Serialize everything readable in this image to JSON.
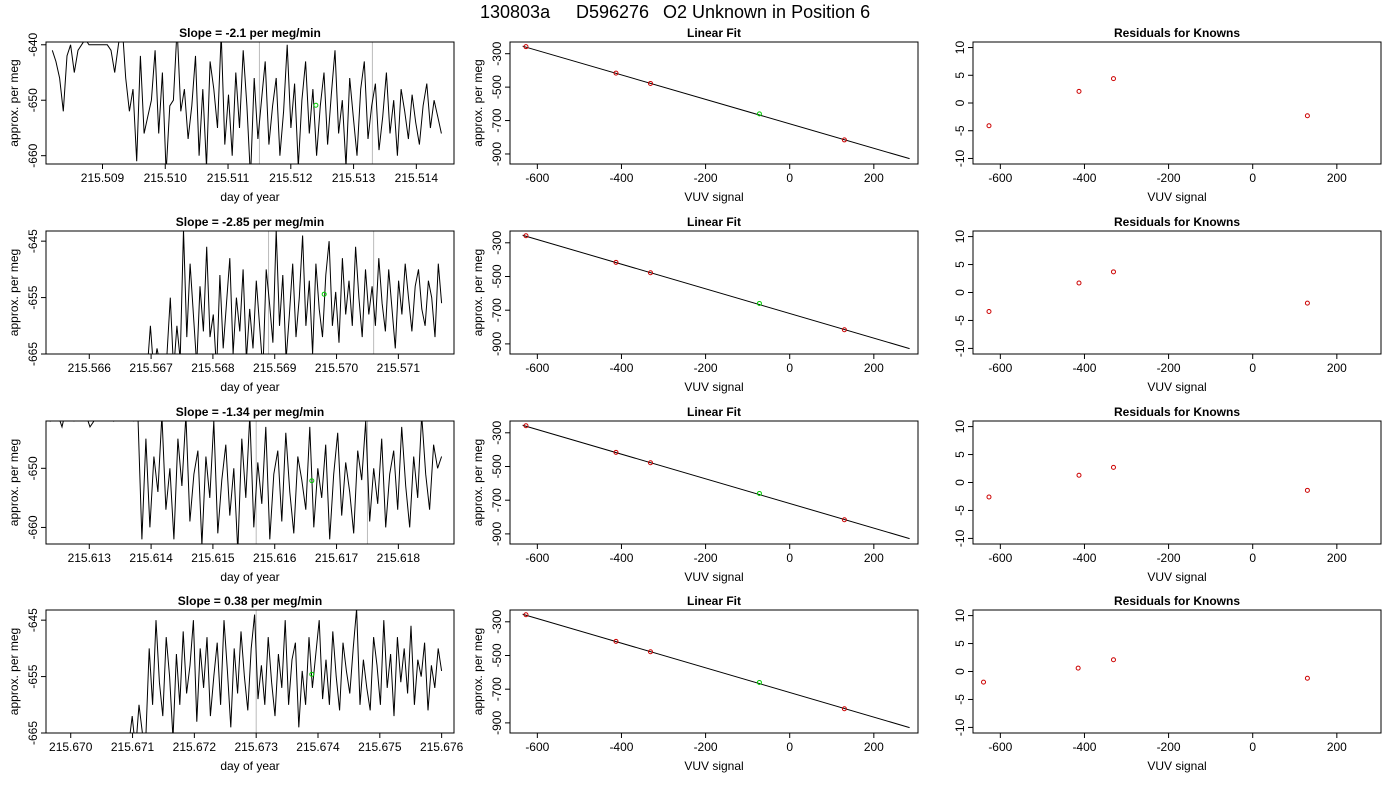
{
  "figure": {
    "title_run": "130803a",
    "title_sample": "D596276",
    "title_desc": "O2 Unknown in Position  6"
  },
  "colors": {
    "known_point": "#cc0000",
    "unknown_point": "#00cc00",
    "line": "#000000",
    "ref_line": "#bbbbbb"
  },
  "chart_data": [
    {
      "type": "line",
      "row": 1,
      "title": "Slope =  -2.1  per meg/min",
      "xlabel": "day of year",
      "ylabel": "approx. per meg",
      "xlim": [
        215.5081,
        215.5146
      ],
      "ylim": [
        -661.5,
        -639.5
      ],
      "xticks": [
        "215.509",
        "215.510",
        "215.511",
        "215.512",
        "215.513",
        "215.514"
      ],
      "yticks": [
        "-640",
        "-650",
        "-660"
      ],
      "ref_lines_x": [
        215.5115,
        215.5133
      ],
      "trace_start": 215.5082,
      "trace_end": 215.5144,
      "trace_y": [
        -641,
        -643,
        -646,
        -652,
        -642,
        -640,
        -645,
        -641,
        -640,
        -639,
        -640,
        -640,
        -640,
        -640,
        -640,
        -640,
        -641,
        -645,
        -640,
        -636,
        -646,
        -652,
        -648,
        -661,
        -642,
        -656,
        -653,
        -650,
        -641,
        -656,
        -645,
        -663,
        -651,
        -650,
        -637,
        -652,
        -648,
        -657,
        -651,
        -642,
        -660,
        -648,
        -662,
        -643,
        -648,
        -655,
        -638,
        -658,
        -649,
        -660,
        -645,
        -655,
        -641,
        -651,
        -664,
        -646,
        -657,
        -650,
        -643,
        -658,
        -651,
        -646,
        -660,
        -652,
        -640,
        -655,
        -647,
        -662,
        -650,
        -643,
        -656,
        -648,
        -660,
        -651,
        -645,
        -658,
        -649,
        -641,
        -656,
        -650,
        -662,
        -646,
        -653,
        -660,
        -648,
        -643,
        -657,
        -651,
        -647,
        -659,
        -653,
        -645,
        -656,
        -650,
        -660,
        -648,
        -652,
        -657,
        -649,
        -654,
        -658,
        -651,
        -647,
        -655,
        -650,
        -653,
        -656
      ],
      "unknown_point": {
        "x": 215.5124,
        "y": -650.9
      }
    },
    {
      "type": "scatter",
      "row": 1,
      "title": "Linear Fit",
      "xlabel": "VUV signal",
      "ylabel": "approx. per meg",
      "xlim": [
        -665,
        305
      ],
      "ylim": [
        -960,
        -230
      ],
      "xticks": [
        -600,
        -400,
        -200,
        0,
        200
      ],
      "yticks": [
        -300,
        -500,
        -700,
        -900
      ],
      "line": {
        "x": [
          -635,
          285
        ],
        "y": [
          -255,
          -928
        ]
      },
      "knowns": [
        {
          "x": -627,
          "y": -258
        },
        {
          "x": -413,
          "y": -416
        },
        {
          "x": -331,
          "y": -478
        },
        {
          "x": 130,
          "y": -816
        }
      ],
      "unknown": {
        "x": -72,
        "y": -660
      }
    },
    {
      "type": "scatter",
      "row": 1,
      "title": "Residuals for Knowns",
      "xlabel": "VUV signal",
      "ylabel": "",
      "xlim": [
        -665,
        305
      ],
      "ylim": [
        -11,
        11
      ],
      "xticks": [
        -600,
        -400,
        -200,
        0,
        200
      ],
      "yticks": [
        10,
        5,
        0,
        -5,
        -10
      ],
      "points": [
        {
          "x": -627,
          "y": -4.1
        },
        {
          "x": -413,
          "y": 2.1
        },
        {
          "x": -331,
          "y": 4.4
        },
        {
          "x": 130,
          "y": -2.3
        }
      ]
    },
    {
      "type": "line",
      "row": 2,
      "title": "Slope =  -2.85  per meg/min",
      "xlabel": "day of year",
      "ylabel": "approx. per meg",
      "xlim": [
        215.5653,
        215.5719
      ],
      "ylim": [
        -665,
        -643.2
      ],
      "xticks": [
        "215.566",
        "215.567",
        "215.568",
        "215.569",
        "215.570",
        "215.571"
      ],
      "yticks": [
        "-645",
        "-655",
        "-665"
      ],
      "ref_lines_x": [
        215.5689,
        215.5706
      ],
      "trace_start": 215.5664,
      "trace_end": 215.5717,
      "trace_y": [
        -666,
        -666,
        -667,
        -666,
        -667,
        -668,
        -666,
        -667,
        -666,
        -667,
        -668,
        -660,
        -668,
        -664,
        -667,
        -670,
        -665,
        -655,
        -668,
        -660,
        -666,
        -643,
        -662,
        -649,
        -658,
        -667,
        -653,
        -661,
        -646,
        -662,
        -658,
        -668,
        -651,
        -664,
        -656,
        -648,
        -665,
        -655,
        -661,
        -650,
        -666,
        -657,
        -664,
        -652,
        -660,
        -668,
        -650,
        -656,
        -663,
        -643,
        -660,
        -651,
        -666,
        -658,
        -649,
        -662,
        -655,
        -644,
        -660,
        -652,
        -665,
        -649,
        -657,
        -662,
        -651,
        -645,
        -660,
        -654,
        -663,
        -648,
        -658,
        -652,
        -660,
        -646,
        -655,
        -662,
        -650,
        -658,
        -653,
        -660,
        -648,
        -656,
        -661,
        -650,
        -657,
        -664,
        -652,
        -658,
        -649,
        -655,
        -661,
        -653,
        -650,
        -657,
        -660,
        -652,
        -655,
        -662,
        -649,
        -656
      ],
      "unknown_point": {
        "x": 215.5698,
        "y": -654.4
      }
    },
    {
      "type": "scatter",
      "row": 2,
      "title": "Linear Fit",
      "xlabel": "VUV signal",
      "ylabel": "approx. per meg",
      "xlim": [
        -665,
        305
      ],
      "ylim": [
        -960,
        -230
      ],
      "xticks": [
        -600,
        -400,
        -200,
        0,
        200
      ],
      "yticks": [
        -300,
        -500,
        -700,
        -900
      ],
      "line": {
        "x": [
          -635,
          285
        ],
        "y": [
          -255,
          -928
        ]
      },
      "knowns": [
        {
          "x": -627,
          "y": -258
        },
        {
          "x": -413,
          "y": -416
        },
        {
          "x": -331,
          "y": -478
        },
        {
          "x": 130,
          "y": -816
        }
      ],
      "unknown": {
        "x": -72,
        "y": -660
      }
    },
    {
      "type": "scatter",
      "row": 2,
      "title": "Residuals for Knowns",
      "xlabel": "VUV signal",
      "ylabel": "",
      "xlim": [
        -665,
        305
      ],
      "ylim": [
        -11,
        11
      ],
      "xticks": [
        -600,
        -400,
        -200,
        0,
        200
      ],
      "yticks": [
        10,
        5,
        0,
        -5,
        -10
      ],
      "points": [
        {
          "x": -627,
          "y": -3.4
        },
        {
          "x": -413,
          "y": 1.7
        },
        {
          "x": -331,
          "y": 3.7
        },
        {
          "x": 130,
          "y": -1.9
        }
      ]
    },
    {
      "type": "line",
      "row": 3,
      "title": "Slope =  -1.34  per meg/min",
      "xlabel": "day of year",
      "ylabel": "approx. per meg",
      "xlim": [
        215.6123,
        215.6189
      ],
      "ylim": [
        -662.8,
        -642
      ],
      "xticks": [
        "215.613",
        "215.614",
        "215.615",
        "215.616",
        "215.617",
        "215.618"
      ],
      "yticks": [
        "-650",
        "-660"
      ],
      "ref_lines_x": [
        215.6157,
        215.6175
      ],
      "trace_start": 215.6123,
      "trace_end": 215.6187,
      "trace_y": [
        -641,
        -642,
        -640,
        -641,
        -643,
        -640,
        -641,
        -642,
        -641,
        -640,
        -641,
        -643,
        -642,
        -641,
        -640,
        -641,
        -640,
        -642,
        -641,
        -640,
        -639,
        -641,
        -642,
        -641,
        -662,
        -645,
        -660,
        -648,
        -654,
        -641,
        -657,
        -650,
        -662,
        -645,
        -653,
        -641,
        -659,
        -651,
        -647,
        -663,
        -648,
        -655,
        -642,
        -661,
        -652,
        -646,
        -658,
        -650,
        -664,
        -645,
        -655,
        -641,
        -660,
        -649,
        -656,
        -643,
        -662,
        -651,
        -647,
        -659,
        -644,
        -654,
        -661,
        -648,
        -652,
        -657,
        -643,
        -660,
        -650,
        -655,
        -646,
        -662,
        -651,
        -644,
        -658,
        -649,
        -654,
        -661,
        -647,
        -652,
        -642,
        -659,
        -650,
        -656,
        -645,
        -660,
        -651,
        -647,
        -657,
        -643,
        -653,
        -660,
        -648,
        -655,
        -641,
        -651,
        -657,
        -646,
        -650,
        -648
      ],
      "unknown_point": {
        "x": 215.6166,
        "y": -652.1
      }
    },
    {
      "type": "scatter",
      "row": 3,
      "title": "Linear Fit",
      "xlabel": "VUV signal",
      "ylabel": "approx. per meg",
      "xlim": [
        -665,
        305
      ],
      "ylim": [
        -960,
        -230
      ],
      "xticks": [
        -600,
        -400,
        -200,
        0,
        200
      ],
      "yticks": [
        -300,
        -500,
        -700,
        -900
      ],
      "line": {
        "x": [
          -635,
          285
        ],
        "y": [
          -255,
          -928
        ]
      },
      "knowns": [
        {
          "x": -627,
          "y": -258
        },
        {
          "x": -413,
          "y": -416
        },
        {
          "x": -331,
          "y": -478
        },
        {
          "x": 130,
          "y": -816
        }
      ],
      "unknown": {
        "x": -72,
        "y": -660
      }
    },
    {
      "type": "scatter",
      "row": 3,
      "title": "Residuals for Knowns",
      "xlabel": "VUV signal",
      "ylabel": "",
      "xlim": [
        -665,
        305
      ],
      "ylim": [
        -11,
        11
      ],
      "xticks": [
        -600,
        -400,
        -200,
        0,
        200
      ],
      "yticks": [
        10,
        5,
        0,
        -5,
        -10
      ],
      "points": [
        {
          "x": -627,
          "y": -2.6
        },
        {
          "x": -413,
          "y": 1.3
        },
        {
          "x": -331,
          "y": 2.7
        },
        {
          "x": 130,
          "y": -1.4
        }
      ]
    },
    {
      "type": "line",
      "row": 4,
      "title": "Slope =  0.38  per meg/min",
      "xlabel": "day of year",
      "ylabel": "approx. per meg",
      "xlim": [
        215.6696,
        215.6762
      ],
      "ylim": [
        -665,
        -643.2
      ],
      "xticks": [
        "215.670",
        "215.671",
        "215.672",
        "215.673",
        "215.674",
        "215.675",
        "215.676"
      ],
      "yticks": [
        "-645",
        "-655",
        "-665"
      ],
      "ref_lines_x": [
        215.673
      ],
      "trace_start": 215.6705,
      "trace_end": 215.676,
      "trace_y": [
        -667,
        -667,
        -668,
        -667,
        -668,
        -666,
        -667,
        -668,
        -667,
        -662,
        -668,
        -660,
        -665,
        -666,
        -650,
        -660,
        -645,
        -656,
        -662,
        -648,
        -655,
        -666,
        -651,
        -660,
        -647,
        -658,
        -653,
        -645,
        -663,
        -650,
        -657,
        -648,
        -662,
        -655,
        -649,
        -660,
        -645,
        -654,
        -664,
        -650,
        -658,
        -647,
        -655,
        -661,
        -650,
        -644,
        -659,
        -653,
        -660,
        -648,
        -656,
        -662,
        -651,
        -657,
        -645,
        -660,
        -652,
        -649,
        -664,
        -654,
        -660,
        -648,
        -657,
        -651,
        -645,
        -659,
        -652,
        -660,
        -647,
        -655,
        -661,
        -649,
        -654,
        -658,
        -650,
        -643,
        -660,
        -652,
        -657,
        -661,
        -648,
        -653,
        -660,
        -645,
        -657,
        -651,
        -662,
        -648,
        -656,
        -650,
        -658,
        -646,
        -660,
        -652,
        -655,
        -649,
        -661,
        -653,
        -657,
        -650,
        -654
      ],
      "unknown_point": {
        "x": 215.6739,
        "y": -654.6
      }
    },
    {
      "type": "scatter",
      "row": 4,
      "title": "Linear Fit",
      "xlabel": "VUV signal",
      "ylabel": "approx. per meg",
      "xlim": [
        -665,
        305
      ],
      "ylim": [
        -960,
        -230
      ],
      "xticks": [
        -600,
        -400,
        -200,
        0,
        200
      ],
      "yticks": [
        -300,
        -500,
        -700,
        -900
      ],
      "line": {
        "x": [
          -635,
          285
        ],
        "y": [
          -255,
          -928
        ]
      },
      "knowns": [
        {
          "x": -627,
          "y": -258
        },
        {
          "x": -413,
          "y": -416
        },
        {
          "x": -331,
          "y": -478
        },
        {
          "x": 130,
          "y": -816
        }
      ],
      "unknown": {
        "x": -72,
        "y": -660
      }
    },
    {
      "type": "scatter",
      "row": 4,
      "title": "Residuals for Knowns",
      "xlabel": "VUV signal",
      "ylabel": "",
      "xlim": [
        -665,
        305
      ],
      "ylim": [
        -11,
        11
      ],
      "xticks": [
        -600,
        -400,
        -200,
        0,
        200
      ],
      "yticks": [
        10,
        5,
        0,
        -5,
        -10
      ],
      "points": [
        {
          "x": -640,
          "y": -1.9
        },
        {
          "x": -415,
          "y": 0.6
        },
        {
          "x": -331,
          "y": 2.1
        },
        {
          "x": 130,
          "y": -1.2
        }
      ]
    }
  ]
}
